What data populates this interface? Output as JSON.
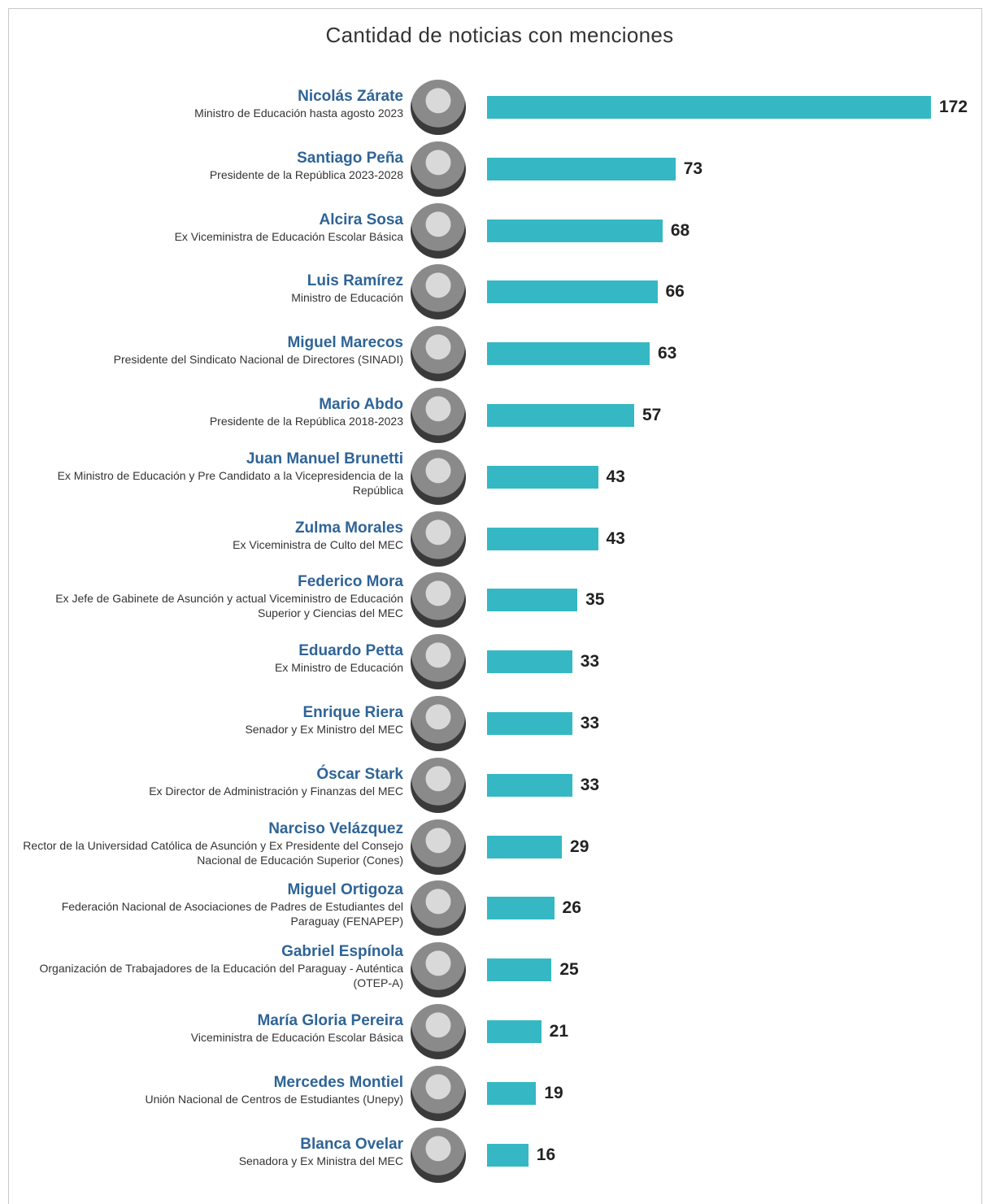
{
  "chart_data": {
    "type": "bar",
    "orientation": "horizontal",
    "title": "Cantidad de noticias con menciones",
    "color": "#35b8c3",
    "categories": [
      "Nicolás Zárate",
      "Santiago Peña",
      "Alcira Sosa",
      "Luis Ramírez",
      "Miguel Marecos",
      "Mario Abdo",
      "Juan Manuel Brunetti",
      "Zulma Morales",
      "Federico Mora",
      "Eduardo Petta",
      "Enrique Riera",
      "Óscar Stark",
      "Narciso Velázquez",
      "Miguel Ortigoza",
      "Gabriel Espínola",
      "María Gloria Pereira",
      "Mercedes Montiel",
      "Blanca Ovelar"
    ],
    "descriptions": [
      "Ministro de Educación hasta agosto 2023",
      "Presidente de la República 2023-2028",
      "Ex Viceministra de Educación Escolar Básica",
      "Ministro de Educación",
      "Presidente del Sindicato Nacional de Directores (SINADI)",
      "Presidente de la República 2018-2023",
      "Ex Ministro de Educación y Pre Candidato a la Vicepresidencia de la República",
      "Ex Viceministra de Culto del MEC",
      "Ex Jefe de Gabinete de Asunción y actual Viceministro de Educación Superior y Ciencias del MEC",
      "Ex Ministro de Educación",
      "Senador y Ex Ministro del MEC",
      "Ex Director de Administración y Finanzas del MEC",
      "Rector de la Universidad Católica de Asunción y Ex Presidente del Consejo Nacional de Educación Superior (Cones)",
      "Federación Nacional de Asociaciones de Padres de Estudiantes del Paraguay (FENAPEP)",
      "Organización de Trabajadores de la Educación del Paraguay - Auténtica (OTEP-A)",
      "Viceministra de Educación Escolar Básica",
      "Unión Nacional de Centros de Estudiantes (Unepy)",
      "Senadora y Ex Ministra del MEC"
    ],
    "values": [
      172,
      73,
      68,
      66,
      63,
      57,
      43,
      43,
      35,
      33,
      33,
      33,
      29,
      26,
      25,
      21,
      19,
      16
    ],
    "xlim": [
      0,
      172
    ]
  }
}
